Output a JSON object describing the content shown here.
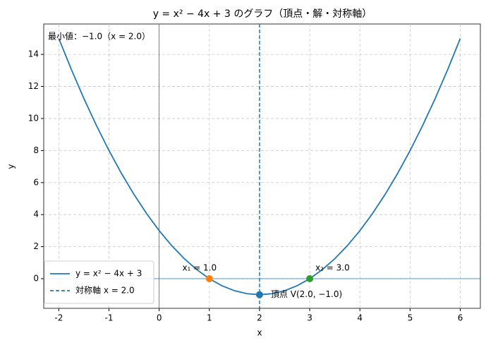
{
  "chart_data": {
    "type": "line",
    "title": "y = x² − 4x + 3 のグラフ（頂点・解・対称軸）",
    "xlabel": "x",
    "ylabel": "y",
    "xlim": [
      -2.3,
      6.4
    ],
    "ylim": [
      -1.85,
      15.9
    ],
    "xticks": [
      -2,
      -1,
      0,
      1,
      2,
      3,
      4,
      5,
      6
    ],
    "yticks": [
      0,
      2,
      4,
      6,
      8,
      10,
      12,
      14
    ],
    "grid": true,
    "legend": "lower left",
    "axhline": 0,
    "axvline": 0,
    "ref_color": "#1f77b4",
    "series": [
      {
        "name": "y = x² − 4x + 3",
        "color": "#1f77b4",
        "style": "solid",
        "x": [
          -2,
          -1.75,
          -1.5,
          -1.25,
          -1,
          -0.75,
          -0.5,
          -0.25,
          0,
          0.25,
          0.5,
          0.75,
          1,
          1.25,
          1.5,
          1.75,
          2,
          2.25,
          2.5,
          2.75,
          3,
          3.25,
          3.5,
          3.75,
          4,
          4.25,
          4.5,
          4.75,
          5,
          5.25,
          5.5,
          5.75,
          6
        ],
        "values": [
          15,
          13.0625,
          11.25,
          9.5625,
          8,
          6.5625,
          5.25,
          4.0625,
          3,
          2.0625,
          1.25,
          0.5625,
          0,
          -0.4375,
          -0.75,
          -0.9375,
          -1,
          -0.9375,
          -0.75,
          -0.4375,
          0,
          0.5625,
          1.25,
          2.0625,
          3,
          4.0625,
          5.25,
          6.5625,
          8,
          9.5625,
          11.25,
          13.0625,
          15
        ]
      },
      {
        "name": "対称軸 x = 2.0",
        "color": "#1f77b4",
        "style": "dashed",
        "vline": 2
      }
    ],
    "points": [
      {
        "x": 1,
        "y": 0,
        "color": "#ff7f0e",
        "label": "x₁ = 1.0"
      },
      {
        "x": 3,
        "y": 0,
        "color": "#2ca02c",
        "label": "x₂ = 3.0"
      },
      {
        "x": 2,
        "y": -1,
        "color": "#1f77b4",
        "label": "頂点 V(2.0, −1.0)"
      }
    ],
    "annotation": "最小値：−1.0（x = 2.0）"
  }
}
